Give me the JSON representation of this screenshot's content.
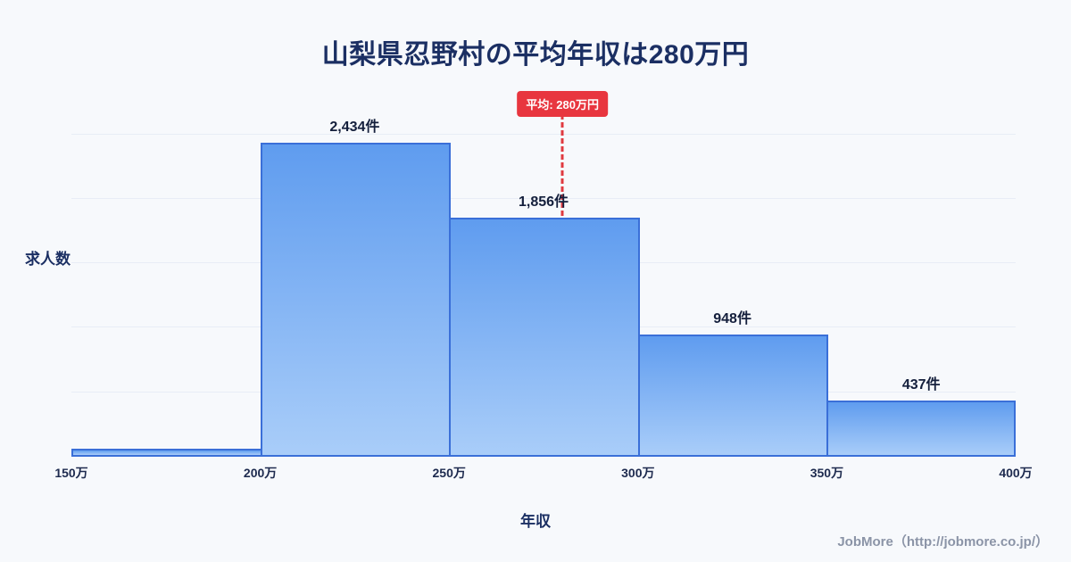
{
  "title": "山梨県忍野村の平均年収は280万円",
  "footer": "JobMore（http://jobmore.co.jp/）",
  "chart_data": {
    "type": "bar",
    "title": "山梨県忍野村の平均年収は280万円",
    "xlabel": "年収",
    "ylabel": "求人数",
    "x_range": [
      150,
      400
    ],
    "x_ticks": [
      "150万",
      "200万",
      "250万",
      "300万",
      "350万",
      "400万"
    ],
    "bins": [
      [
        150,
        200
      ],
      [
        200,
        250
      ],
      [
        250,
        300
      ],
      [
        300,
        350
      ],
      [
        350,
        400
      ]
    ],
    "values": [
      60,
      2434,
      1856,
      948,
      437
    ],
    "bar_labels": [
      "",
      "2,434件",
      "1,856件",
      "948件",
      "437件"
    ],
    "gridline_values": [
      500,
      1000,
      1500,
      2000,
      2500
    ],
    "average": {
      "value": 280,
      "label": "平均: 280万円"
    },
    "legend": "none",
    "colors": {
      "background": "#f7f9fc",
      "bar_fill_top": "#5f9cef",
      "bar_fill_bottom": "#a9cdf9",
      "bar_border": "#3a6fd8",
      "average_line": "#e03a40",
      "average_badge_bg": "#e8363f",
      "title_text": "#1b2f63",
      "footer_text": "#8b94a7"
    }
  }
}
